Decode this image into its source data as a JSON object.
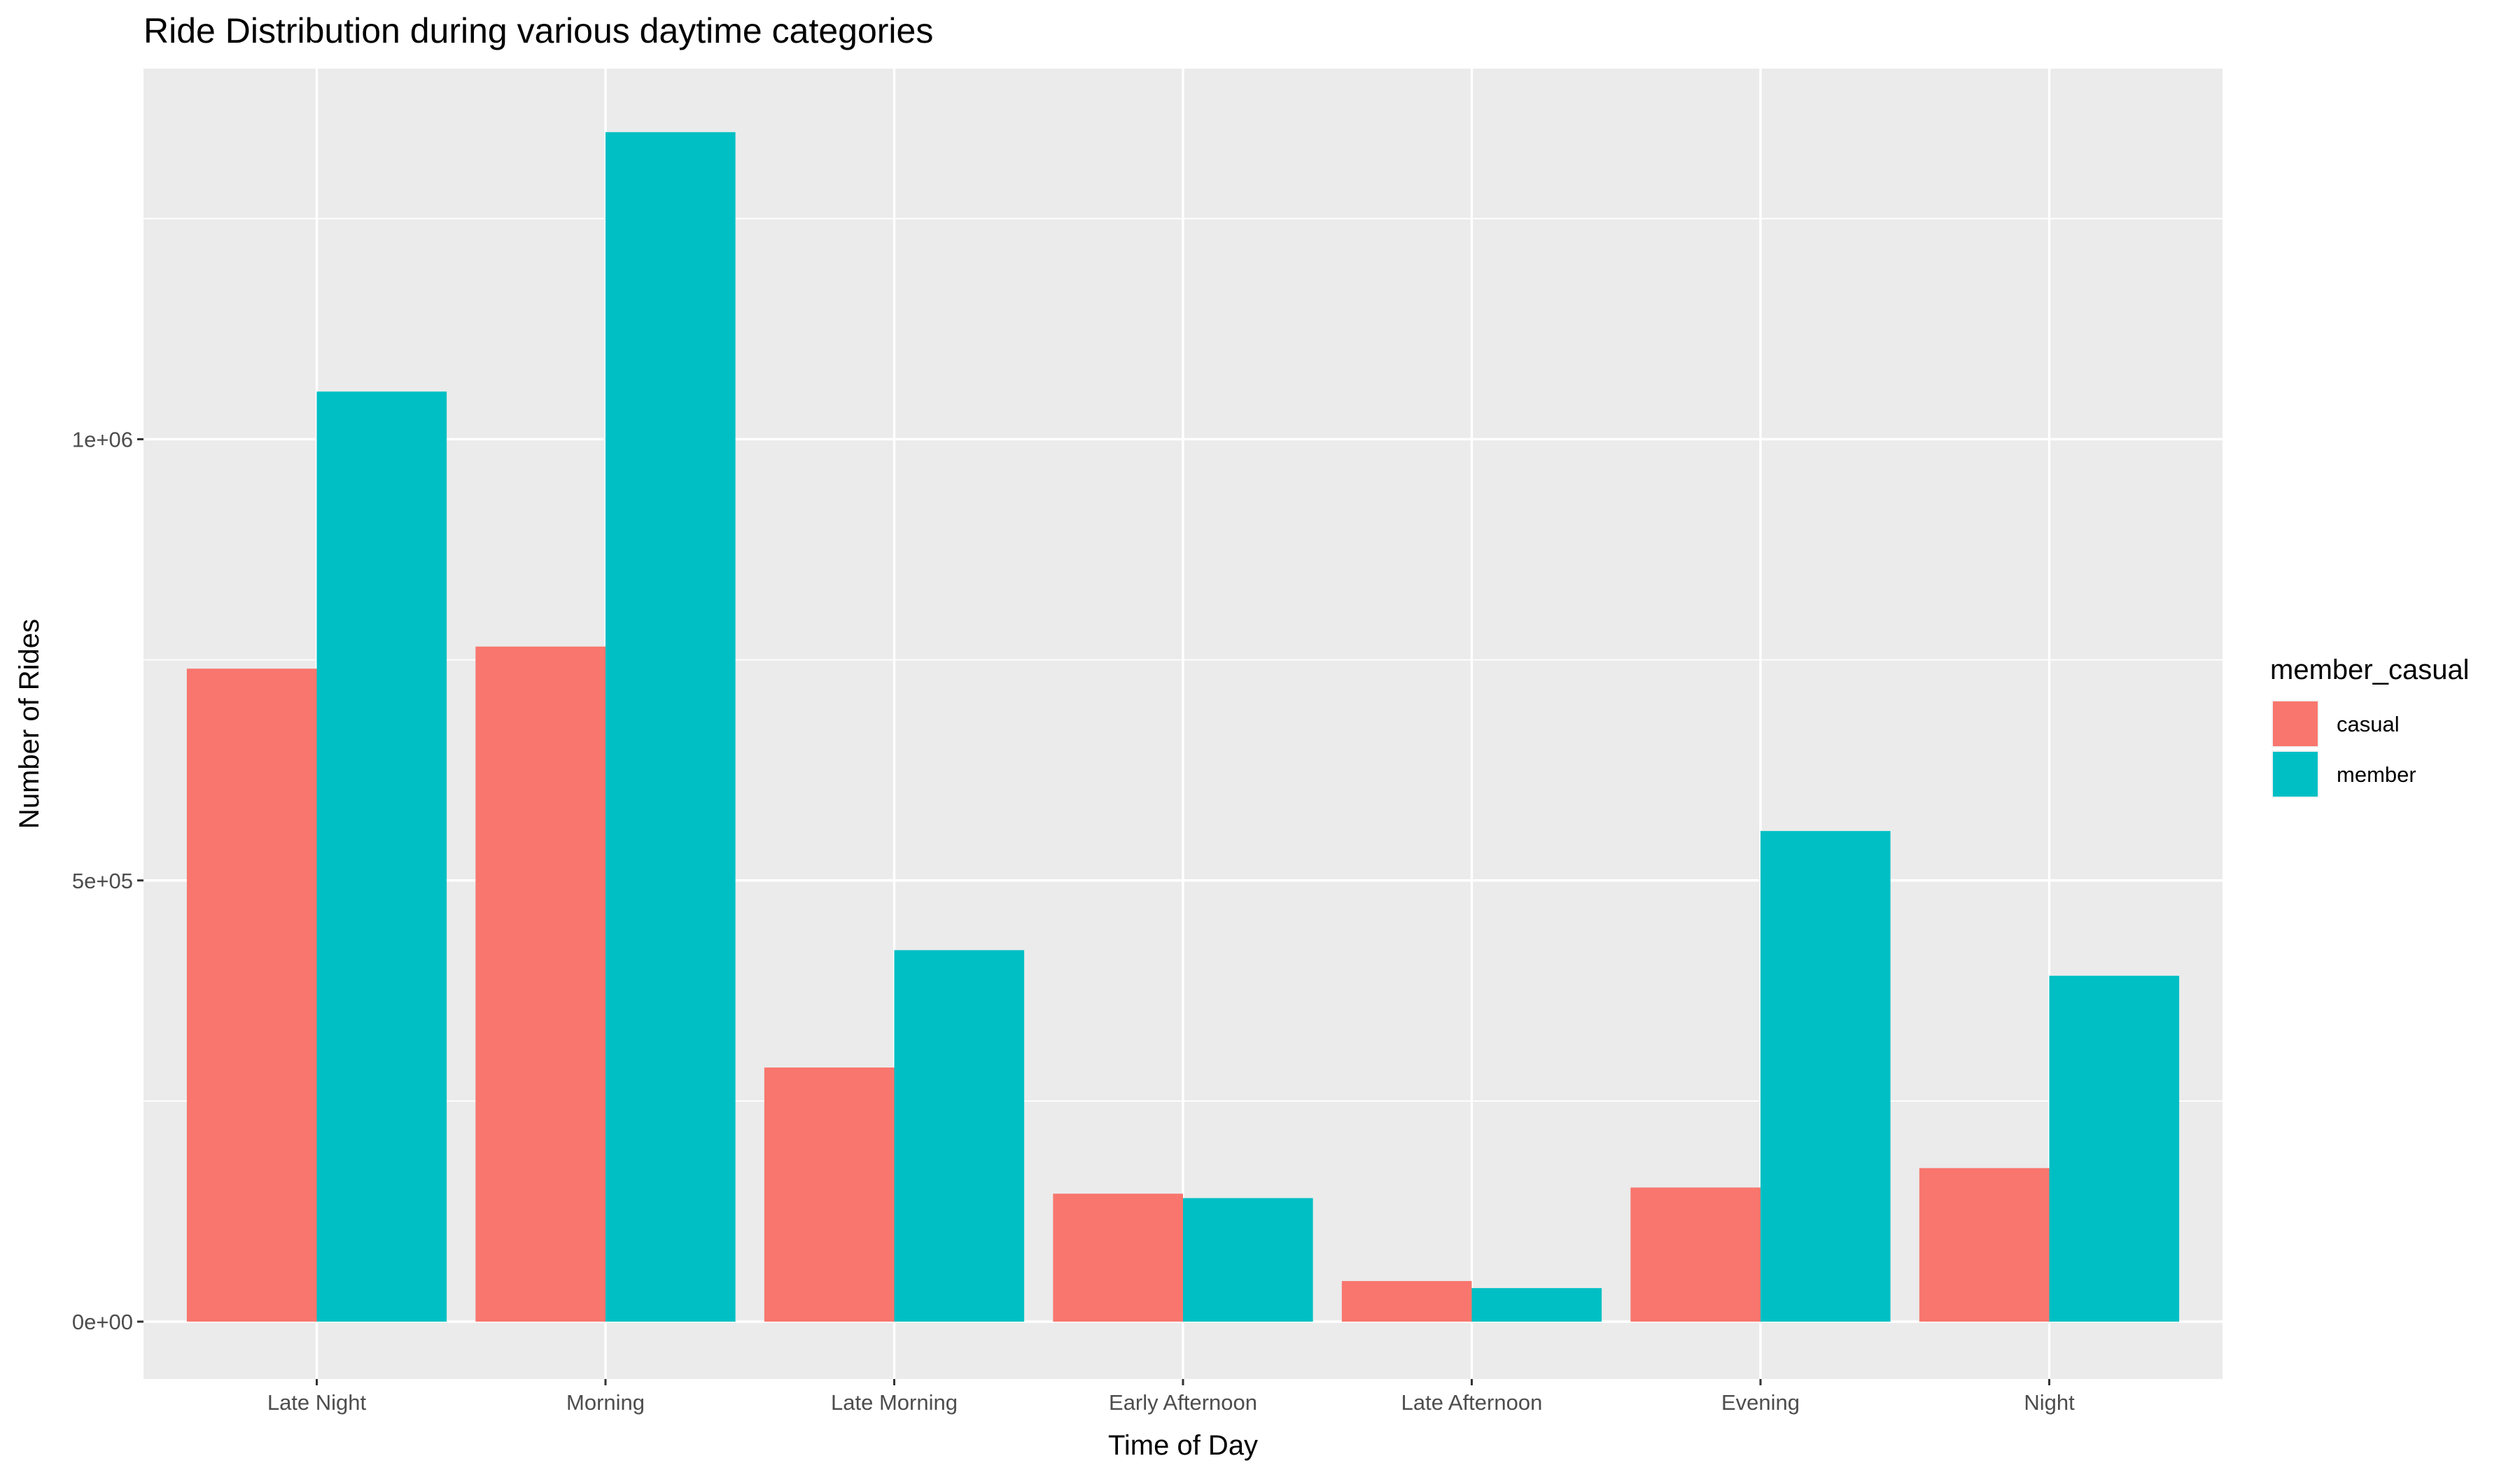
{
  "chart_data": {
    "type": "bar",
    "title": "Ride Distribution during various daytime categories",
    "xlabel": "Time of Day",
    "ylabel": "Number of Rides",
    "categories": [
      "Late Night",
      "Morning",
      "Late Morning",
      "Early Afternoon",
      "Late Afternoon",
      "Evening",
      "Night"
    ],
    "series": [
      {
        "name": "casual",
        "color": "#F8766D",
        "values": [
          740000,
          765000,
          288000,
          145000,
          46000,
          152000,
          174000
        ]
      },
      {
        "name": "member",
        "color": "#00BFC4",
        "values": [
          1054000,
          1348000,
          421000,
          140000,
          38000,
          556000,
          392000
        ]
      }
    ],
    "ylim": [
      -65000,
      1420000
    ],
    "yticks": [
      {
        "value": 0,
        "label": "0e+00"
      },
      {
        "value": 500000,
        "label": "5e+05"
      },
      {
        "value": 1000000,
        "label": "1e+06"
      }
    ],
    "yminor": [
      250000,
      750000,
      1250000
    ],
    "grid": true,
    "panel_background": "#EBEBEB",
    "gridline_color": "#FFFFFF",
    "legend": {
      "title": "member_casual",
      "placement": "right",
      "entries": [
        "casual",
        "member"
      ]
    }
  }
}
